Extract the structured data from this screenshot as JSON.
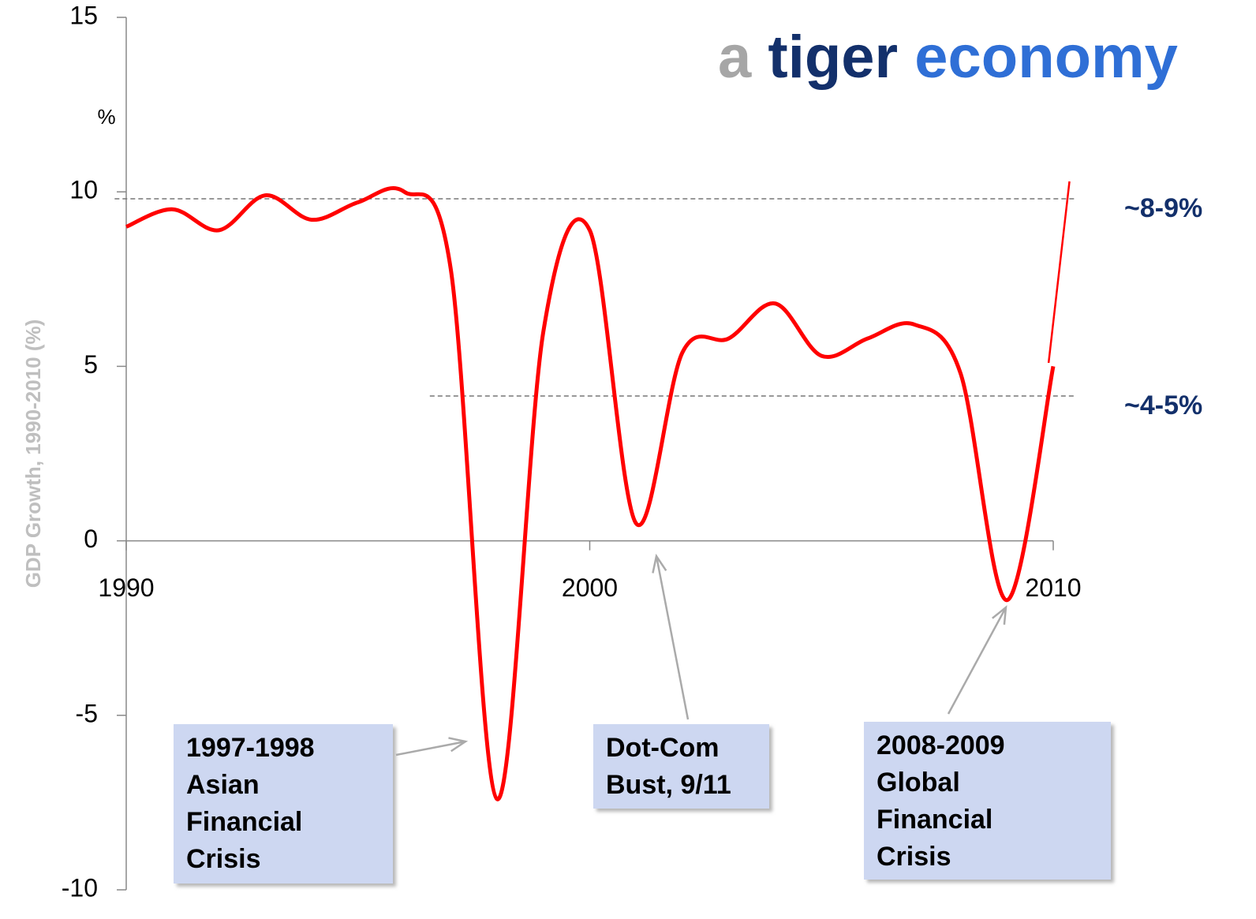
{
  "chart_data": {
    "type": "line",
    "title_parts": [
      "a",
      "tiger",
      "economy"
    ],
    "ylabel": "GDP Growth, 1990-2010 (%)",
    "unit_label": "%",
    "x": [
      1990,
      1991,
      1992,
      1993,
      1994,
      1995,
      1996,
      1997,
      1998,
      1999,
      2000,
      2001,
      2002,
      2003,
      2004,
      2005,
      2006,
      2007,
      2008,
      2009,
      2010
    ],
    "series": [
      {
        "color": "#ff0000",
        "values": [
          9.0,
          9.5,
          8.9,
          9.9,
          9.2,
          9.7,
          10.0,
          7.8,
          -7.4,
          6.0,
          8.9,
          0.5,
          5.4,
          5.8,
          6.8,
          5.3,
          5.8,
          6.2,
          4.8,
          -1.7,
          5.0
        ],
        "smooth": true
      },
      {
        "color": "#ff0000",
        "x": [
          2009.9,
          2010.35
        ],
        "values": [
          5.1,
          10.3
        ],
        "smooth": false
      }
    ],
    "xlim": [
      1990,
      2010
    ],
    "xticks": [
      1990,
      2000,
      2010
    ],
    "ylim": [
      -10,
      15
    ],
    "yticks": [
      -10,
      -5,
      0,
      5,
      10,
      15
    ],
    "reference_lines": [
      {
        "value": 9.8,
        "label": "~8-9%",
        "xlim": [
          1989.75,
          2010.5
        ]
      },
      {
        "value": 4.15,
        "label": "~4-5%",
        "xlim": [
          1996.55,
          2010.5
        ]
      }
    ],
    "annotations": [
      {
        "lines": [
          "1997-1998",
          "Asian",
          "Financial",
          "Crisis"
        ]
      },
      {
        "lines": [
          "Dot-Com",
          "Bust, 9/11"
        ]
      },
      {
        "lines": [
          "2008-2009",
          "Global",
          "Financial",
          "Crisis"
        ]
      }
    ]
  }
}
